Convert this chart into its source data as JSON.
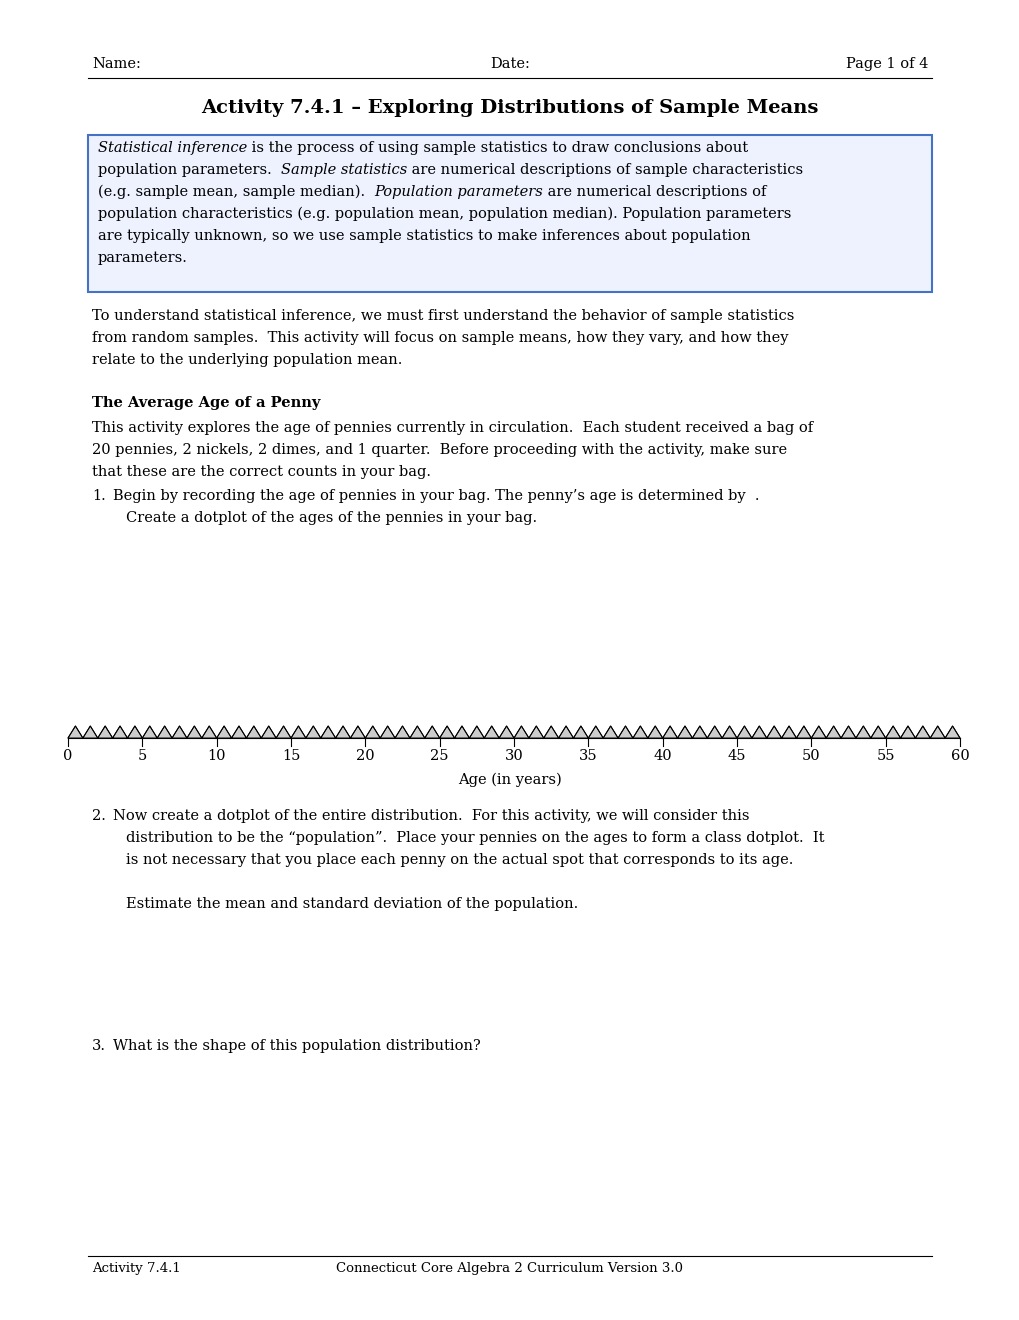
{
  "page_title": "Activity 7.4.1 – Exploring Distributions of Sample Means",
  "header_name": "Name:",
  "header_date": "Date:",
  "header_page": "Page 1 of 4",
  "paragraph1_lines": [
    "To understand statistical inference, we must first understand the behavior of sample statistics",
    "from random samples.  This activity will focus on sample means, how they vary, and how they",
    "relate to the underlying population mean."
  ],
  "subheading": "The Average Age of a Penny",
  "paragraph2_lines": [
    "This activity explores the age of pennies currently in circulation.  Each student received a bag of",
    "20 pennies, 2 nickels, 2 dimes, and 1 quarter.  Before proceeding with the activity, make sure",
    "that these are the correct counts in your bag."
  ],
  "item1_line1": "Begin by recording the age of pennies in your bag. The penny’s age is determined by  .",
  "item1_line2": "Create a dotplot of the ages of the pennies in your bag.",
  "axis_label": "Age (in years)",
  "axis_ticks": [
    0,
    5,
    10,
    15,
    20,
    25,
    30,
    35,
    40,
    45,
    50,
    55,
    60
  ],
  "item2_line1": "Now create a dotplot of the entire distribution.  For this activity, we will consider this",
  "item2_line2": "distribution to be the “population”.  Place your pennies on the ages to form a class dotplot.  It",
  "item2_line3": "is not necessary that you place each penny on the actual spot that corresponds to its age.",
  "item2_sub": "Estimate the mean and standard deviation of the population.",
  "item3_text": "What is the shape of this population distribution?",
  "footer_left": "Activity 7.4.1",
  "footer_right": "Connecticut Core Algebra 2 Curriculum Version 3.0",
  "bg_color": "#ffffff",
  "text_color": "#000000",
  "box_border_color": "#4472c4",
  "box_bg_color": "#eef2ff",
  "font_size": 10.5,
  "title_font_size": 14,
  "footer_font_size": 9.5
}
